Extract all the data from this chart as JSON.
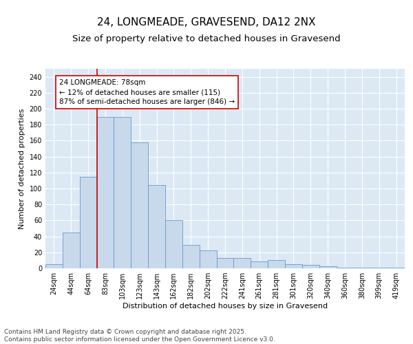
{
  "title_line1": "24, LONGMEADE, GRAVESEND, DA12 2NX",
  "title_line2": "Size of property relative to detached houses in Gravesend",
  "xlabel": "Distribution of detached houses by size in Gravesend",
  "ylabel": "Number of detached properties",
  "categories": [
    "24sqm",
    "44sqm",
    "64sqm",
    "83sqm",
    "103sqm",
    "123sqm",
    "143sqm",
    "162sqm",
    "182sqm",
    "202sqm",
    "222sqm",
    "241sqm",
    "261sqm",
    "281sqm",
    "301sqm",
    "320sqm",
    "340sqm",
    "360sqm",
    "380sqm",
    "399sqm",
    "419sqm"
  ],
  "values": [
    5,
    45,
    115,
    190,
    190,
    158,
    104,
    60,
    29,
    22,
    13,
    13,
    9,
    10,
    5,
    4,
    3,
    1,
    1,
    1,
    1
  ],
  "bar_color": "#c9d9ec",
  "bar_edge_color": "#6699cc",
  "background_color": "#dce9f5",
  "grid_color": "#ffffff",
  "vline_color": "#cc0000",
  "annotation_text": "24 LONGMEADE: 78sqm\n← 12% of detached houses are smaller (115)\n87% of semi-detached houses are larger (846) →",
  "annotation_box_color": "#ffffff",
  "annotation_box_edge": "#cc0000",
  "ylim": [
    0,
    250
  ],
  "yticks": [
    0,
    20,
    40,
    60,
    80,
    100,
    120,
    140,
    160,
    180,
    200,
    220,
    240
  ],
  "footnote": "Contains HM Land Registry data © Crown copyright and database right 2025.\nContains public sector information licensed under the Open Government Licence v3.0.",
  "title_fontsize": 11,
  "subtitle_fontsize": 9.5,
  "axis_label_fontsize": 8,
  "tick_fontsize": 7,
  "annotation_fontsize": 7.5,
  "footnote_fontsize": 6.5
}
